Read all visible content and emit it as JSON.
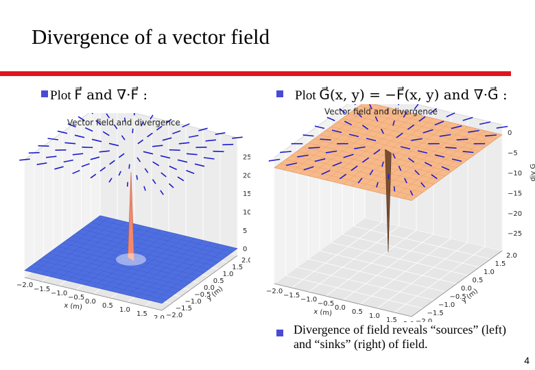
{
  "slide": {
    "title": "Divergence of a vector field",
    "page_number": "4"
  },
  "left": {
    "bullet_prefix": "Plot",
    "bullet_math": "F⃗ and ∇·F⃗ :",
    "plot_title": "Vector field and divergence",
    "z_ticks": [
      "0",
      "5",
      "10",
      "15",
      "20",
      "25"
    ],
    "x_ticks": [
      "−2.0",
      "−1.5",
      "−1.0",
      "−0.5",
      "0.0",
      "0.5",
      "1.0",
      "1.5",
      "2.0"
    ],
    "y_ticks": [
      "−2.0",
      "−1.5",
      "−1.0",
      "−0.5",
      "0.0",
      "0.5",
      "1.0",
      "1.5",
      "2.0"
    ],
    "x_label": "x (m)",
    "y_label": "y (m)"
  },
  "right": {
    "bullet_prefix": "Plot",
    "bullet_math": "G⃗(x, y) = −F⃗(x, y) and ∇·G⃗ :",
    "plot_title": "Vector field and divergence",
    "z_ticks": [
      "0",
      "−5",
      "−10",
      "−15",
      "−20",
      "−25"
    ],
    "x_ticks": [
      "−2.0",
      "−1.5",
      "−1.0",
      "−0.5",
      "0.0",
      "0.5",
      "1.0",
      "1.5",
      "2.0"
    ],
    "y_ticks": [
      "−2.0",
      "−1.5",
      "−1.0",
      "−0.5",
      "0.0",
      "0.5",
      "1.0",
      "1.5",
      "2.0"
    ],
    "x_label": "x (m)",
    "y_label": "y (m)",
    "z_label": "div G"
  },
  "note": {
    "text": "Divergence of field reveals “sources” (left) and “sinks” (right) of field."
  },
  "colors": {
    "rule": "#e3141e",
    "bullet": "#4a4ad6",
    "arrow": "#1a1acc",
    "surface_left": "#4f6fe0",
    "surface_right": "#f7b98a"
  }
}
